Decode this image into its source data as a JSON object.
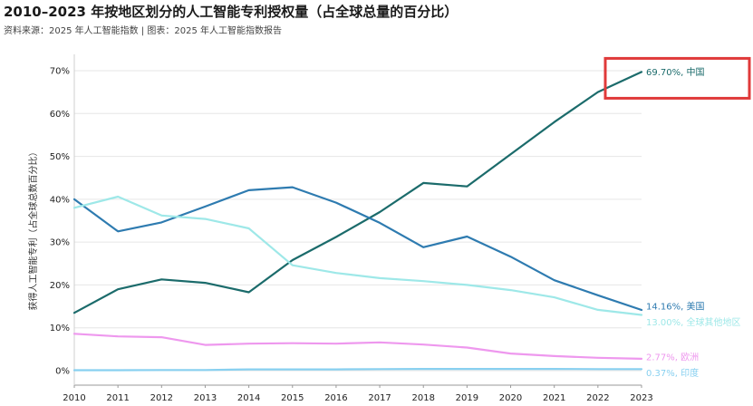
{
  "header": {
    "title": "2010–2023 年按地区划分的人工智能专利授权量（占全球总量的百分比）",
    "source": "资料来源：2025 年人工智能指数 | 图表：2025 年人工智能指数报告"
  },
  "chart_data": {
    "type": "line",
    "title": "2010–2023 年按地区划分的人工智能专利授权量（占全球总量的百分比）",
    "ylabel": "获得人工智能专利（占全球总数百分比）",
    "xlabel": "",
    "ylim": [
      0,
      75
    ],
    "ytick_values": [
      0,
      10,
      20,
      30,
      40,
      50,
      60,
      70
    ],
    "ytick_labels": [
      "0%",
      "10%",
      "20%",
      "30%",
      "40%",
      "50%",
      "60%",
      "70%"
    ],
    "x": [
      2010,
      2011,
      2012,
      2013,
      2014,
      2015,
      2016,
      2017,
      2018,
      2019,
      2020,
      2021,
      2022,
      2023
    ],
    "x_labels": [
      "2010",
      "2011",
      "2012",
      "2013",
      "2014",
      "2015",
      "2016",
      "2017",
      "2018",
      "2019",
      "2020",
      "2021",
      "2022",
      "2023"
    ],
    "grid": "horizontal",
    "series": [
      {
        "name": "中国",
        "label": "69.70%, 中国",
        "color": "#1b6b6b",
        "values": [
          13.5,
          19.0,
          21.3,
          20.5,
          18.3,
          25.8,
          31.2,
          37.0,
          43.8,
          43.0,
          50.5,
          58.0,
          65.0,
          69.7
        ]
      },
      {
        "name": "美国",
        "label": "14.16%, 美国",
        "color": "#2e7bb0",
        "values": [
          40.0,
          32.5,
          34.6,
          38.3,
          42.1,
          42.8,
          39.2,
          34.5,
          28.8,
          31.3,
          26.6,
          21.1,
          17.6,
          14.16
        ]
      },
      {
        "name": "全球其他地区",
        "label": "13.00%, 全球其他地区",
        "color": "#9ee8e8",
        "values": [
          38.0,
          40.6,
          36.2,
          35.4,
          33.2,
          24.6,
          22.8,
          21.6,
          20.9,
          20.0,
          18.8,
          17.1,
          14.2,
          13.0
        ]
      },
      {
        "name": "欧洲",
        "label": "2.77%, 欧洲",
        "color": "#ee98ee",
        "values": [
          8.6,
          8.0,
          7.8,
          6.0,
          6.3,
          6.4,
          6.3,
          6.6,
          6.1,
          5.4,
          4.0,
          3.4,
          3.0,
          2.77
        ]
      },
      {
        "name": "印度",
        "label": "0.37%, 印度",
        "color": "#88d0f0",
        "values": [
          0.1,
          0.1,
          0.15,
          0.15,
          0.3,
          0.3,
          0.3,
          0.35,
          0.4,
          0.4,
          0.4,
          0.4,
          0.37,
          0.37
        ]
      }
    ],
    "annotation": {
      "type": "highlight-box",
      "target_series": "中国",
      "color": "#e03a3a"
    }
  }
}
